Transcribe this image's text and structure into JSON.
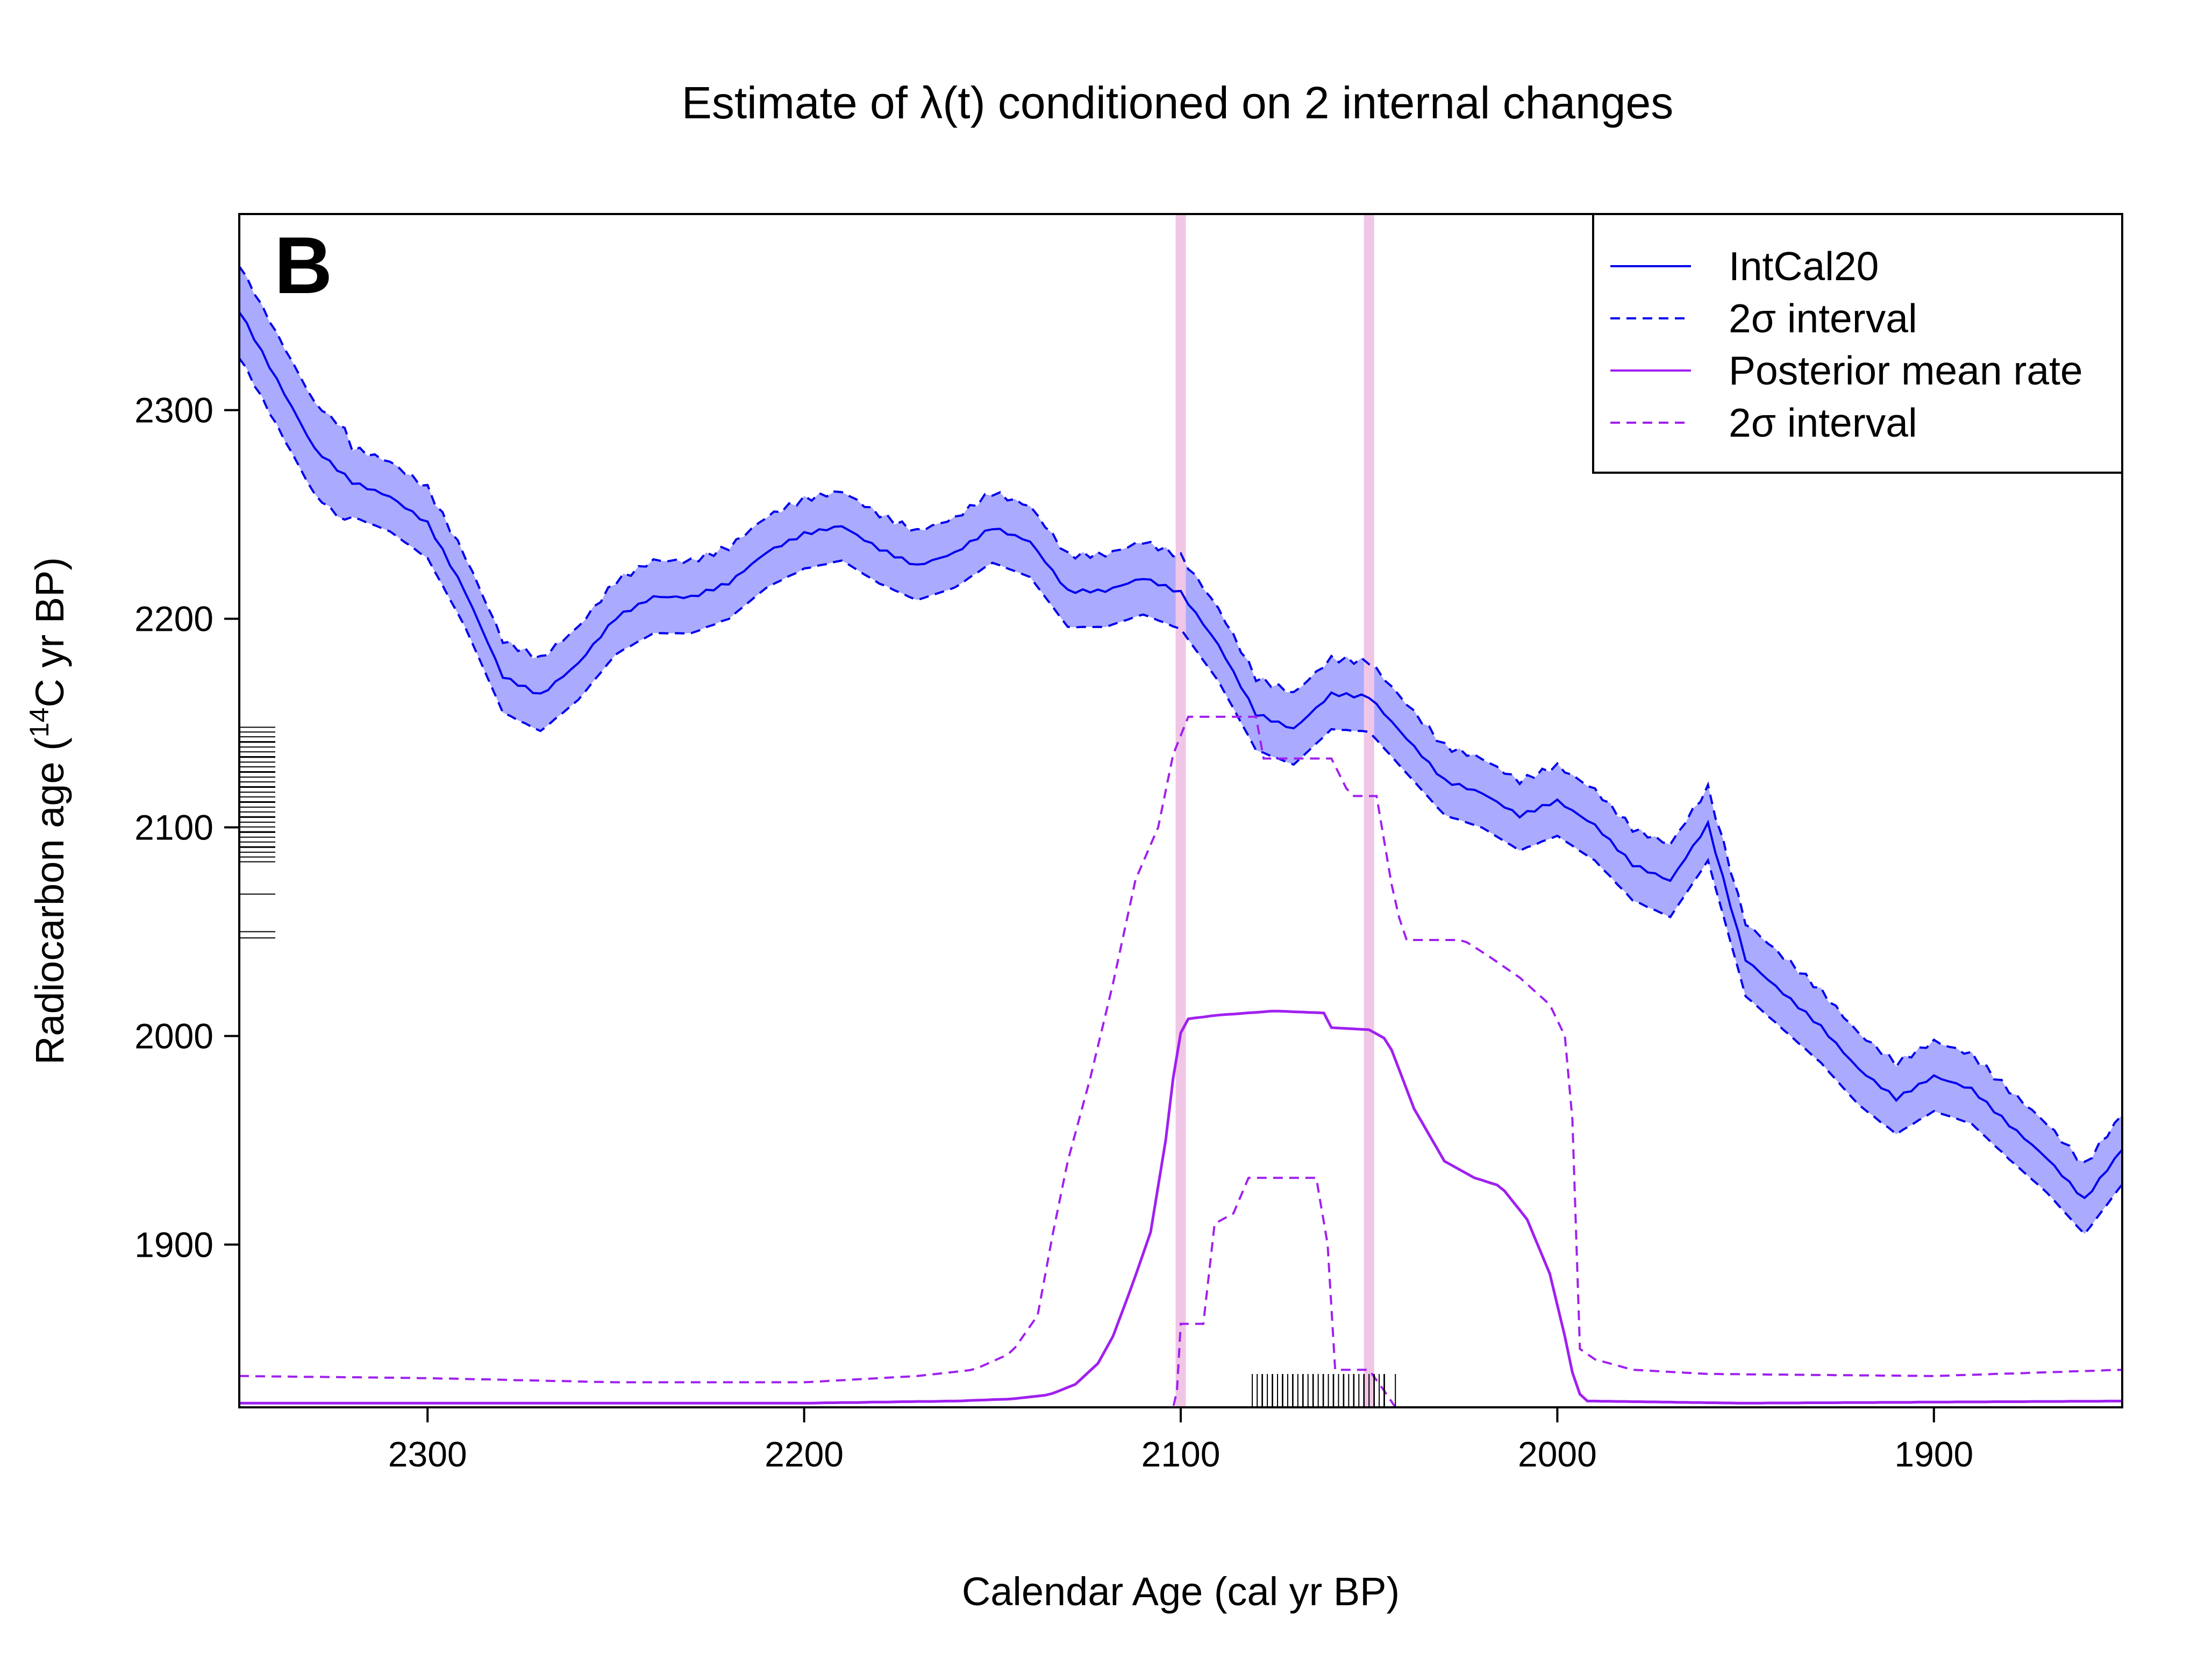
{
  "chart_data": {
    "type": "line",
    "title": "Estimate of λ(t) conditioned on 2 internal changes",
    "panel_label": "B",
    "xlabel": "Calendar Age (cal yr BP)",
    "ylabel_parts": {
      "before": "Radiocarbon age (",
      "sup": "14",
      "after": "C yr BP)"
    },
    "xlim": [
      2350,
      1850
    ],
    "x_reversed": true,
    "ylim": [
      1822,
      2394
    ],
    "xticks": [
      2300,
      2200,
      2100,
      2000,
      1900
    ],
    "yticks": [
      1900,
      2000,
      2100,
      2200,
      2300
    ],
    "change_points": [
      2100,
      2050
    ],
    "legend": {
      "position": "top-right",
      "entries": [
        {
          "label": "IntCal20",
          "color": "#0000ee",
          "dash": "solid"
        },
        {
          "label": "2σ interval",
          "color": "#0000ee",
          "dash": "dashed"
        },
        {
          "label": "Posterior mean rate",
          "color": "#a020f0",
          "dash": "solid"
        },
        {
          "label": "2σ interval",
          "color": "#a020f0",
          "dash": "dashed"
        }
      ]
    },
    "colors": {
      "intcal": "#0000ee",
      "band_fill": "#aaaaff",
      "rate": "#a020f0",
      "change_point": "#f0c6e6"
    },
    "intcal20_mean": [
      [
        2350,
        2348
      ],
      [
        2340,
        2315
      ],
      [
        2330,
        2282
      ],
      [
        2320,
        2266
      ],
      [
        2310,
        2259
      ],
      [
        2300,
        2246
      ],
      [
        2290,
        2213
      ],
      [
        2280,
        2172
      ],
      [
        2270,
        2163
      ],
      [
        2260,
        2178
      ],
      [
        2250,
        2200
      ],
      [
        2240,
        2210
      ],
      [
        2230,
        2210
      ],
      [
        2220,
        2217
      ],
      [
        2210,
        2232
      ],
      [
        2200,
        2241
      ],
      [
        2190,
        2245
      ],
      [
        2180,
        2234
      ],
      [
        2170,
        2226
      ],
      [
        2160,
        2232
      ],
      [
        2150,
        2244
      ],
      [
        2140,
        2237
      ],
      [
        2130,
        2213
      ],
      [
        2120,
        2213
      ],
      [
        2110,
        2219
      ],
      [
        2100,
        2212
      ],
      [
        2090,
        2187
      ],
      [
        2080,
        2154
      ],
      [
        2070,
        2147
      ],
      [
        2060,
        2164
      ],
      [
        2050,
        2163
      ],
      [
        2040,
        2143
      ],
      [
        2030,
        2123
      ],
      [
        2020,
        2117
      ],
      [
        2010,
        2106
      ],
      [
        2000,
        2113
      ],
      [
        1990,
        2101
      ],
      [
        1980,
        2082
      ],
      [
        1970,
        2074
      ],
      [
        1960,
        2101
      ]
    ],
    "intcal20_upper": [],
    "intcal20_lower": [],
    "posterior_mean_rate": [],
    "rate_upper_2sigma": [],
    "rate_lower_2sigma": [],
    "observations_calendar": [],
    "observations_radiocarbon": []
  }
}
